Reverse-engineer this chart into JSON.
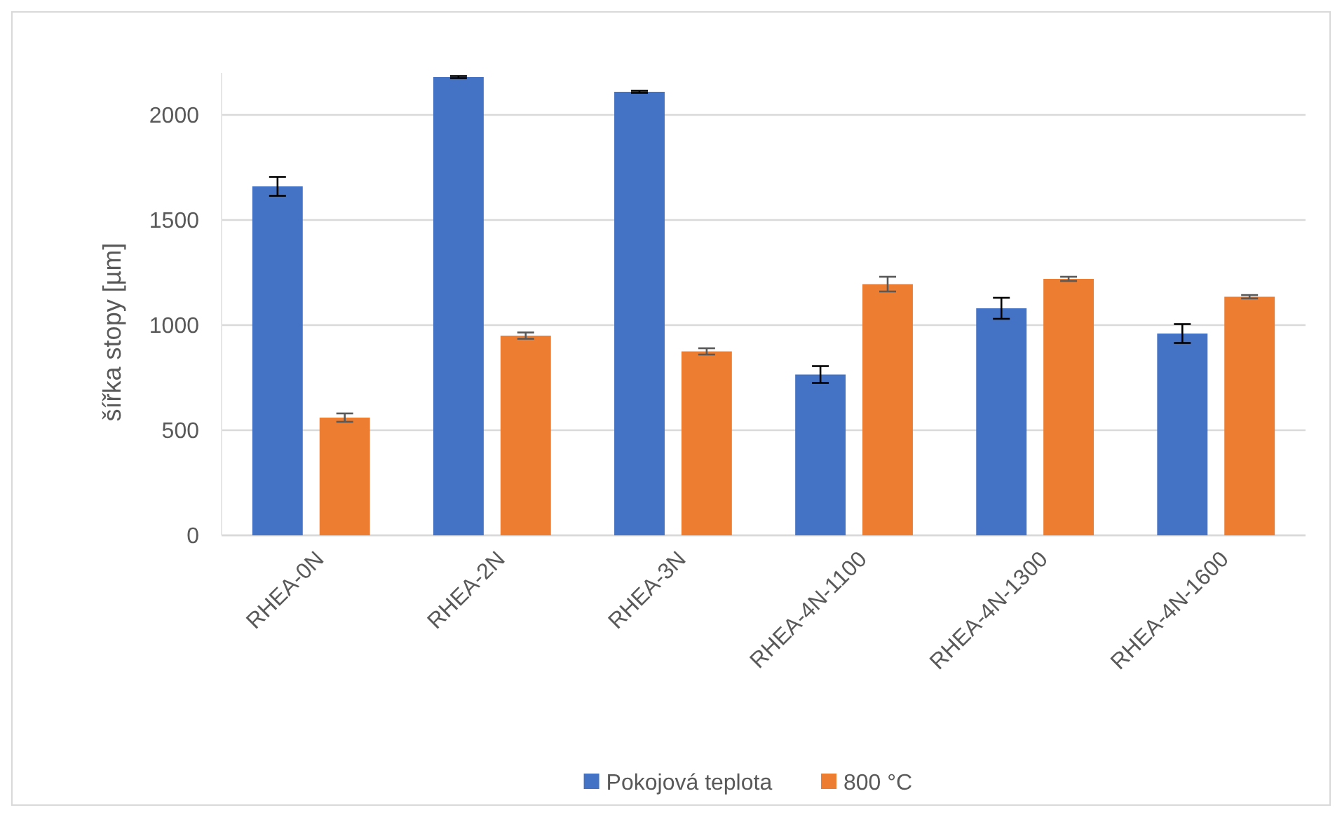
{
  "chart_data": {
    "type": "bar",
    "ylabel": "šířka stopy [µm]",
    "categories": [
      "RHEA-0N",
      "RHEA-2N",
      "RHEA-3N",
      "RHEA-4N-1100",
      "RHEA-4N-1300",
      "RHEA-4N-1600"
    ],
    "series": [
      {
        "name": "Pokojová teplota",
        "color": "#4472c4",
        "values": [
          1660,
          2180,
          2110,
          765,
          1080,
          960
        ],
        "errors": [
          45,
          5,
          5,
          40,
          50,
          45
        ]
      },
      {
        "name": "800 °C",
        "color": "#ed7d31",
        "values": [
          560,
          950,
          875,
          1195,
          1220,
          1135
        ],
        "errors": [
          20,
          15,
          15,
          35,
          10,
          8
        ]
      }
    ],
    "ylim": [
      0,
      2200
    ],
    "yticks": [
      0,
      500,
      1000,
      1500,
      2000
    ],
    "grid": "y",
    "legend": "bottom"
  }
}
